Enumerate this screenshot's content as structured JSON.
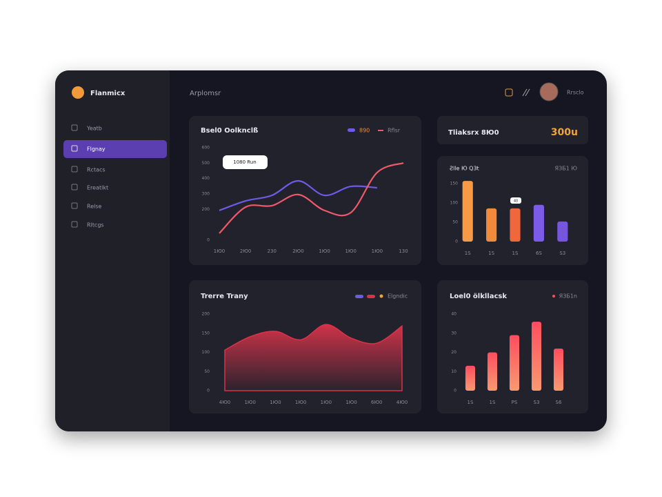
{
  "app": {
    "name": "Flanmicx"
  },
  "sidebar": {
    "items": [
      "Yeatb",
      "Flgnay",
      "Rctacs",
      "Ereatlkt",
      "Relse",
      "Rltcgs"
    ],
    "active": 1
  },
  "header": {
    "title": "Arplomsr",
    "user": "Rrsclo"
  },
  "stat": {
    "label": "Tliaksrx 8Ю0",
    "value": "300u"
  },
  "chart_data": [
    {
      "type": "line",
      "title": "Bsel0 Oolknclß",
      "annotation": "1080 Run",
      "categories": [
        "1Ю0",
        "2Ю0",
        "230",
        "2Ю0",
        "1Ю0",
        "1Ю0",
        "1Ю0",
        "130"
      ],
      "series": [
        {
          "name": "890",
          "color": "#6b5ce7",
          "values": [
            193,
            255,
            291,
            385,
            291,
            349,
            340,
            null
          ]
        },
        {
          "name": "Rflsr",
          "color": "#f0596a",
          "values": [
            45,
            215,
            224,
            296,
            193,
            179,
            439,
            501
          ]
        }
      ],
      "ylim": [
        0,
        600
      ],
      "yticks": [
        0,
        200,
        300,
        400,
        500,
        600
      ],
      "grid": false
    },
    {
      "type": "bar",
      "title": "Ƨlle Ю Q3t",
      "subtitle": "ЯЗБ1 Ю",
      "annotation": "40",
      "categories": [
        "1S",
        "1S",
        "1S",
        "6S",
        "S3"
      ],
      "values": [
        157,
        86,
        86,
        95,
        52
      ],
      "colors": [
        "#f79a45",
        "#f28a3c",
        "#ef683d",
        "#7c5ce6",
        "#7656dc"
      ],
      "ylim": [
        0,
        160
      ],
      "yticks": [
        0,
        50,
        100,
        150
      ],
      "grid": false
    },
    {
      "type": "area",
      "title": "Trerre Trany",
      "categories": [
        "4Ю0",
        "1Ю0",
        "1Ю0",
        "1Ю0",
        "1Ю0",
        "1Ю0",
        "6Ю0",
        "4Ю0"
      ],
      "series": [
        {
          "name": "Elgndic",
          "color": "#d9334a",
          "values": [
            106,
            141,
            155,
            133,
            173,
            137,
            124,
            169
          ]
        }
      ],
      "ylim": [
        0,
        200
      ],
      "yticks": [
        0,
        50,
        100,
        150,
        200
      ],
      "grid": false
    },
    {
      "type": "bar",
      "title": "Loel0 ölkllacsk",
      "subtitle": "ЯЗБ1n",
      "categories": [
        "1S",
        "1S",
        "PS",
        "S3",
        "S6"
      ],
      "values": [
        13,
        20,
        29,
        36,
        22
      ],
      "gradient": [
        "#ff4d5e",
        "#f79a72"
      ],
      "ylim": [
        0,
        40
      ],
      "yticks": [
        0,
        10,
        20,
        30,
        40
      ],
      "grid": false
    }
  ]
}
